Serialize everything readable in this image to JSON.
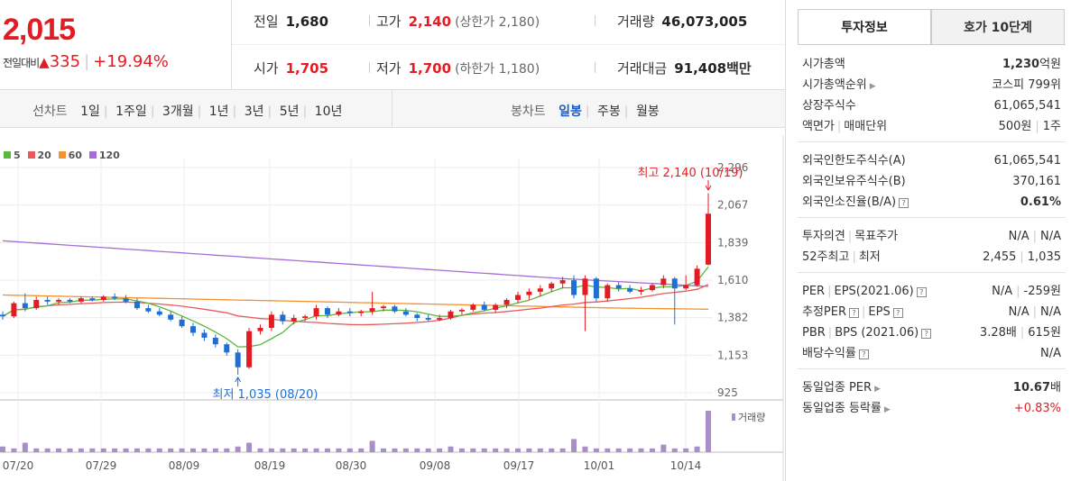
{
  "header": {
    "price": "2,015",
    "change_label": "전일대비",
    "change_arrow": "▲",
    "change_amount": "335",
    "change_percent": "+19.94%"
  },
  "summary": {
    "prev_close": {
      "label": "전일",
      "value": "1,680"
    },
    "high": {
      "label": "고가",
      "value": "2,140",
      "sub": "(상한가 2,180)"
    },
    "volume": {
      "label": "거래량",
      "value": "46,073,005"
    },
    "open": {
      "label": "시가",
      "value": "1,705"
    },
    "low": {
      "label": "저가",
      "value": "1,700",
      "sub": "(하한가 1,180)"
    },
    "trade_value": {
      "label": "거래대금",
      "value": "91,408",
      "unit": "백만"
    }
  },
  "period_bar": {
    "label": "선차트",
    "options": [
      "1일",
      "1주일",
      "3개월",
      "1년",
      "3년",
      "5년",
      "10년"
    ],
    "candle_label": "봉차트",
    "candle_options": [
      "일봉",
      "주봉",
      "월봉"
    ],
    "candle_selected": "일봉"
  },
  "chart_data": {
    "type": "candlestick",
    "legend": [
      {
        "name": "5",
        "color": "#5cb83c"
      },
      {
        "name": "20",
        "color": "#e85a5a"
      },
      {
        "name": "60",
        "color": "#f5912e"
      },
      {
        "name": "120",
        "color": "#a56ed6"
      }
    ],
    "y_ticks": [
      "2,296",
      "2,067",
      "1,839",
      "1,610",
      "1,382",
      "1,153",
      "925"
    ],
    "ylim": [
      925,
      2296
    ],
    "x_ticks": [
      "07/20",
      "07/29",
      "08/09",
      "08/19",
      "08/30",
      "09/08",
      "09/17",
      "10/01",
      "10/14"
    ],
    "high_annotation": "최고 2,140 (10/19)",
    "low_annotation": "최저 1,035 (08/20)",
    "volume_label": "거래량",
    "candles": [
      [
        1400,
        1420,
        1370,
        1390
      ],
      [
        1390,
        1480,
        1380,
        1470
      ],
      [
        1470,
        1530,
        1420,
        1440
      ],
      [
        1440,
        1510,
        1430,
        1490
      ],
      [
        1490,
        1510,
        1460,
        1480
      ],
      [
        1480,
        1500,
        1460,
        1490
      ],
      [
        1490,
        1500,
        1470,
        1480
      ],
      [
        1480,
        1510,
        1470,
        1500
      ],
      [
        1500,
        1510,
        1480,
        1490
      ],
      [
        1490,
        1520,
        1480,
        1510
      ],
      [
        1510,
        1530,
        1490,
        1500
      ],
      [
        1500,
        1520,
        1470,
        1480
      ],
      [
        1480,
        1500,
        1430,
        1440
      ],
      [
        1440,
        1460,
        1410,
        1420
      ],
      [
        1420,
        1440,
        1390,
        1400
      ],
      [
        1400,
        1420,
        1360,
        1370
      ],
      [
        1370,
        1390,
        1320,
        1330
      ],
      [
        1330,
        1350,
        1270,
        1290
      ],
      [
        1290,
        1310,
        1240,
        1260
      ],
      [
        1260,
        1280,
        1200,
        1220
      ],
      [
        1220,
        1230,
        1150,
        1170
      ],
      [
        1170,
        1190,
        1035,
        1080
      ],
      [
        1080,
        1320,
        1070,
        1300
      ],
      [
        1300,
        1340,
        1280,
        1320
      ],
      [
        1320,
        1420,
        1300,
        1400
      ],
      [
        1400,
        1420,
        1340,
        1360
      ],
      [
        1360,
        1400,
        1340,
        1380
      ],
      [
        1380,
        1400,
        1360,
        1390
      ],
      [
        1390,
        1460,
        1370,
        1440
      ],
      [
        1440,
        1450,
        1380,
        1400
      ],
      [
        1400,
        1440,
        1390,
        1420
      ],
      [
        1420,
        1440,
        1390,
        1410
      ],
      [
        1410,
        1430,
        1390,
        1420
      ],
      [
        1420,
        1540,
        1400,
        1440
      ],
      [
        1440,
        1460,
        1420,
        1450
      ],
      [
        1450,
        1460,
        1410,
        1420
      ],
      [
        1420,
        1440,
        1390,
        1400
      ],
      [
        1400,
        1410,
        1360,
        1380
      ],
      [
        1380,
        1400,
        1360,
        1370
      ],
      [
        1370,
        1400,
        1360,
        1380
      ],
      [
        1380,
        1430,
        1370,
        1420
      ],
      [
        1420,
        1440,
        1400,
        1430
      ],
      [
        1430,
        1470,
        1420,
        1460
      ],
      [
        1460,
        1480,
        1420,
        1430
      ],
      [
        1430,
        1470,
        1410,
        1460
      ],
      [
        1460,
        1500,
        1440,
        1490
      ],
      [
        1490,
        1540,
        1470,
        1520
      ],
      [
        1520,
        1560,
        1490,
        1540
      ],
      [
        1540,
        1580,
        1510,
        1560
      ],
      [
        1560,
        1600,
        1540,
        1590
      ],
      [
        1590,
        1630,
        1560,
        1610
      ],
      [
        1610,
        1640,
        1500,
        1520
      ],
      [
        1520,
        1640,
        1300,
        1620
      ],
      [
        1620,
        1630,
        1480,
        1500
      ],
      [
        1500,
        1590,
        1480,
        1580
      ],
      [
        1580,
        1600,
        1540,
        1560
      ],
      [
        1560,
        1580,
        1530,
        1540
      ],
      [
        1540,
        1570,
        1520,
        1550
      ],
      [
        1550,
        1590,
        1540,
        1580
      ],
      [
        1580,
        1640,
        1560,
        1620
      ],
      [
        1620,
        1630,
        1340,
        1560
      ],
      [
        1560,
        1640,
        1550,
        1580
      ],
      [
        1580,
        1700,
        1570,
        1680
      ],
      [
        1705,
        2140,
        1700,
        2015
      ]
    ],
    "volumes": [
      3,
      2,
      5,
      2,
      2,
      2,
      2,
      2,
      2,
      2,
      2,
      2,
      2,
      2,
      2,
      2,
      2,
      2,
      2,
      2,
      2,
      3,
      5,
      2,
      2,
      2,
      2,
      2,
      2,
      2,
      2,
      2,
      2,
      6,
      2,
      2,
      2,
      2,
      2,
      2,
      3,
      2,
      2,
      2,
      2,
      2,
      2,
      2,
      2,
      2,
      2,
      7,
      3,
      2,
      2,
      2,
      2,
      2,
      2,
      4,
      2,
      2,
      3,
      22
    ]
  },
  "side_panel": {
    "tabs": [
      "투자정보",
      "호가 10단계"
    ],
    "group1": [
      {
        "k": "시가총액",
        "v": "1,230",
        "unit": "억원"
      },
      {
        "k": "시가총액순위",
        "v": "코스피 799위"
      },
      {
        "k": "상장주식수",
        "v": "61,065,541"
      },
      {
        "k": "액면가",
        "k2": "매매단위",
        "v": "500원",
        "v2": "1주"
      }
    ],
    "group2": [
      {
        "k": "외국인한도주식수(A)",
        "v": "61,065,541"
      },
      {
        "k": "외국인보유주식수(B)",
        "v": "370,161"
      },
      {
        "k": "외국인소진율(B/A)",
        "v": "0.61%"
      }
    ],
    "group3": [
      {
        "k": "투자의견",
        "k2": "목표주가",
        "v": "N/A",
        "v2": "N/A"
      },
      {
        "k": "52주최고",
        "k2": "최저",
        "v": "2,455",
        "v2": "1,035"
      }
    ],
    "group4": [
      {
        "k": "PER",
        "k2": "EPS(2021.06)",
        "v": "N/A",
        "v2": "-259원"
      },
      {
        "k": "추정PER",
        "k2": "EPS",
        "v": "N/A",
        "v2": "N/A"
      },
      {
        "k": "PBR",
        "k2": "BPS (2021.06)",
        "v": "3.28배",
        "v2": "615원"
      },
      {
        "k": "배당수익률",
        "v": "N/A"
      }
    ],
    "group5": [
      {
        "k": "동일업종 PER",
        "v": "10.67",
        "unit": "배"
      },
      {
        "k": "동일업종 등락률",
        "v": "+0.83%"
      }
    ]
  }
}
